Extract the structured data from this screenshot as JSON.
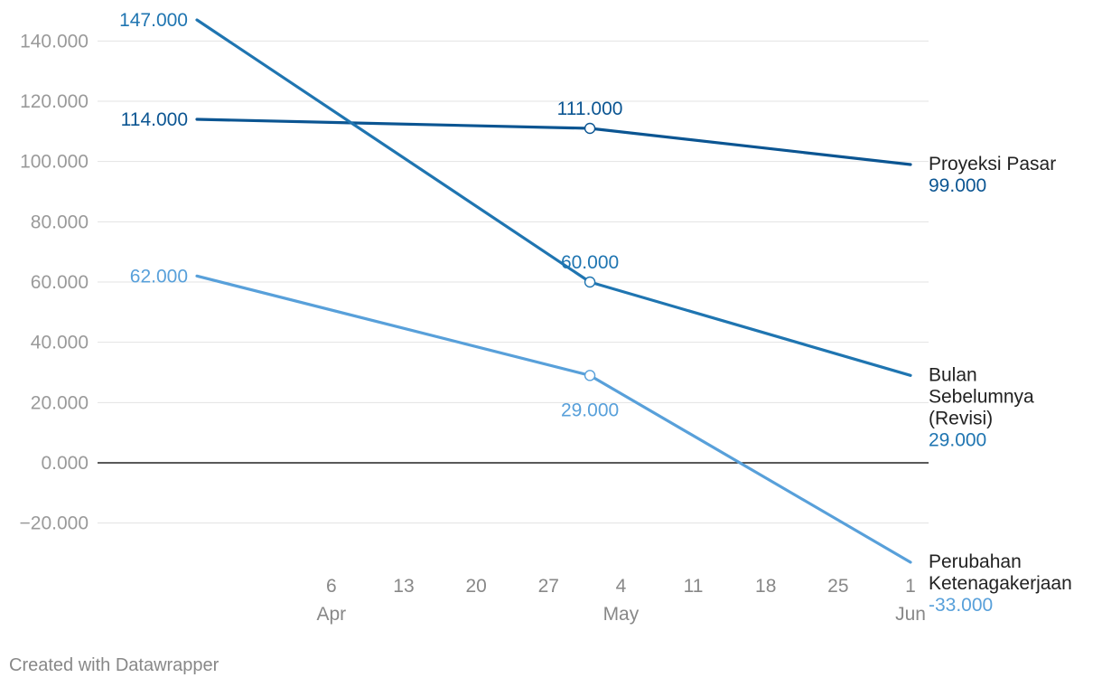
{
  "footer": "Created with Datawrapper",
  "chart_data": {
    "type": "line",
    "title": "",
    "xlabel": "",
    "ylabel": "",
    "ylim": [
      -33000,
      147000
    ],
    "y_ticks": [
      {
        "value": 140000,
        "label": "140.000"
      },
      {
        "value": 120000,
        "label": "120.000"
      },
      {
        "value": 100000,
        "label": "100.000"
      },
      {
        "value": 80000,
        "label": "80.000"
      },
      {
        "value": 60000,
        "label": "60.000"
      },
      {
        "value": 40000,
        "label": "40.000"
      },
      {
        "value": 20000,
        "label": "20.000"
      },
      {
        "value": 0,
        "label": "0.000"
      },
      {
        "value": -20000,
        "label": "−20.000"
      }
    ],
    "x_domain": [
      "2024-03-24",
      "2024-06-01"
    ],
    "x_ticks": [
      {
        "date": "2024-04-06",
        "label": "6"
      },
      {
        "date": "2024-04-13",
        "label": "13"
      },
      {
        "date": "2024-04-20",
        "label": "20"
      },
      {
        "date": "2024-04-27",
        "label": "27"
      },
      {
        "date": "2024-05-04",
        "label": "4"
      },
      {
        "date": "2024-05-11",
        "label": "11"
      },
      {
        "date": "2024-05-18",
        "label": "18"
      },
      {
        "date": "2024-05-25",
        "label": "25"
      },
      {
        "date": "2024-06-01",
        "label": "1"
      }
    ],
    "month_labels": [
      {
        "date": "2024-04-06",
        "label": "Apr"
      },
      {
        "date": "2024-05-04",
        "label": "May"
      },
      {
        "date": "2024-06-01",
        "label": "Jun"
      }
    ],
    "x": [
      "2024-03-24",
      "2024-05-01",
      "2024-06-01"
    ],
    "series": [
      {
        "name": "Proyeksi Pasar",
        "name_lines": [
          "Proyeksi Pasar"
        ],
        "color": "#0b5592",
        "values": [
          114000,
          111000,
          99000
        ],
        "labels": [
          "114.000",
          "111.000",
          "99.000"
        ],
        "mid_label_pos": "above"
      },
      {
        "name": "Bulan Sebelumnya (Revisi)",
        "name_lines": [
          "Bulan",
          "Sebelumnya",
          "(Revisi)"
        ],
        "color": "#1f75b1",
        "values": [
          147000,
          60000,
          29000
        ],
        "labels": [
          "147.000",
          "60.000",
          "29.000"
        ],
        "mid_label_pos": "above"
      },
      {
        "name": "Perubahan Ketenagakerjaan",
        "name_lines": [
          "Perubahan",
          "Ketenagakerjaan"
        ],
        "color": "#58a0da",
        "values": [
          62000,
          29000,
          -33000
        ],
        "labels": [
          "62.000",
          "29.000",
          "-33.000"
        ],
        "mid_label_pos": "below"
      }
    ]
  }
}
